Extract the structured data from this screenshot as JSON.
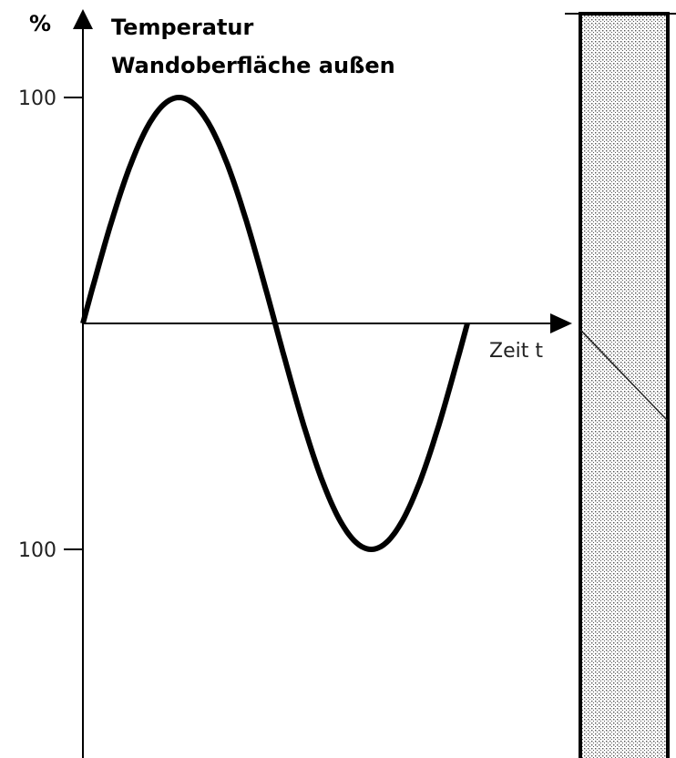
{
  "axis": {
    "unit": "%",
    "title_line1": "Temperatur",
    "title_line2": "Wandoberfläche außen",
    "tick_top": "100",
    "tick_bottom": "100",
    "x_label": "Zeit t"
  }
}
